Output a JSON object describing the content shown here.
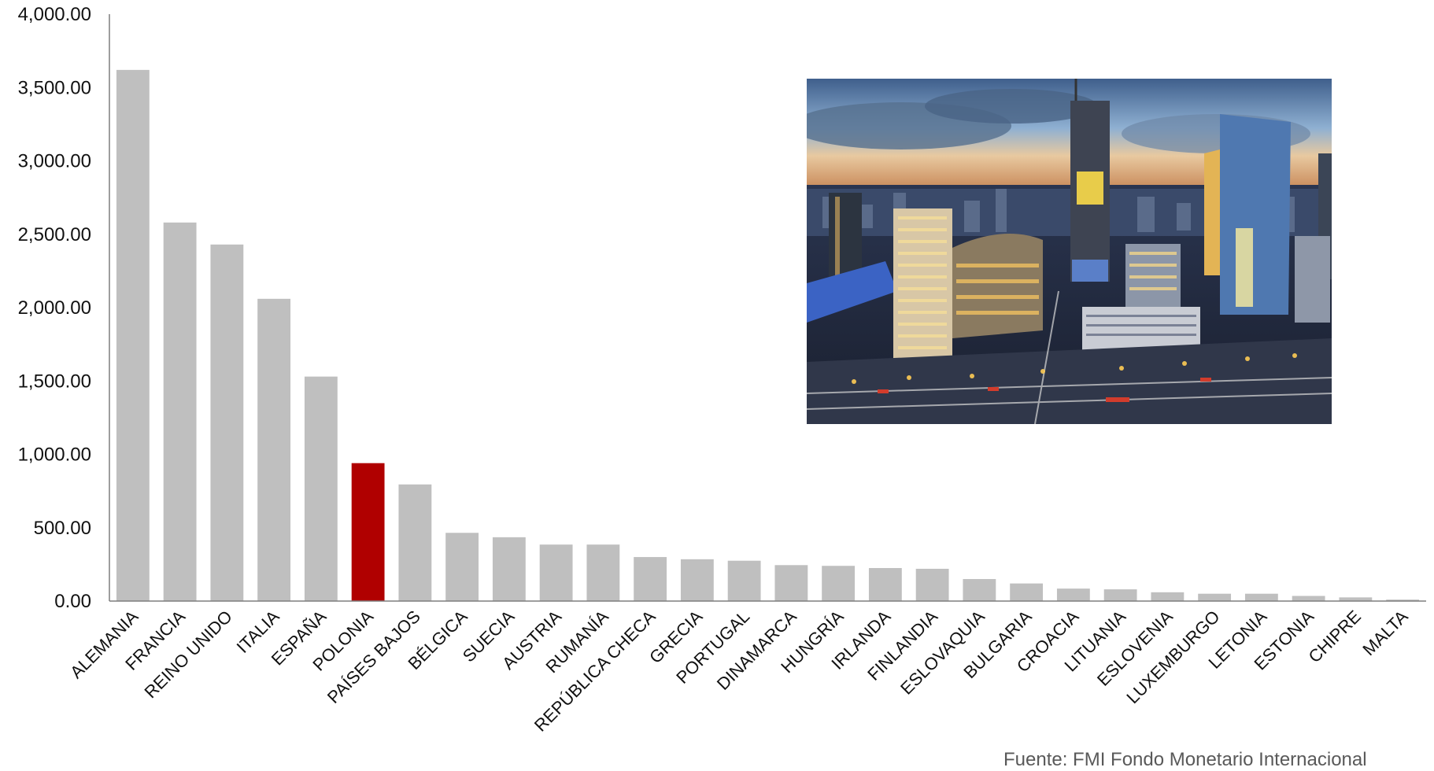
{
  "chart_data": {
    "type": "bar",
    "categories": [
      "ALEMANIA",
      "FRANCIA",
      "REINO UNIDO",
      "ITALIA",
      "ESPAÑA",
      "POLONIA",
      "PAÍSES BAJOS",
      "BÉLGICA",
      "SUECIA",
      "AUSTRIA",
      "RUMANÍA",
      "REPÚBLICA CHECA",
      "GRECIA",
      "PORTUGAL",
      "DINAMARCA",
      "HUNGRÍA",
      "IRLANDA",
      "FINLANDIA",
      "ESLOVAQUIA",
      "BULGARIA",
      "CROACIA",
      "LITUANIA",
      "ESLOVENIA",
      "LUXEMBURGO",
      "LETONIA",
      "ESTONIA",
      "CHIPRE",
      "MALTA"
    ],
    "values": [
      3620,
      2580,
      2430,
      2060,
      1530,
      940,
      795,
      465,
      435,
      385,
      385,
      300,
      285,
      275,
      245,
      240,
      225,
      220,
      150,
      120,
      85,
      80,
      60,
      50,
      50,
      35,
      25,
      10
    ],
    "ylim": [
      0,
      4000
    ],
    "yticks": [
      "0.00",
      "500.00",
      "1,000.00",
      "1,500.00",
      "2,000.00",
      "2,500.00",
      "3,000.00",
      "3,500.00",
      "4,000.00"
    ],
    "highlight_index": 5,
    "colors": {
      "bar": "#bfbfbf",
      "highlight": "#b00000",
      "axis": "#7f7f7f"
    },
    "grid": false,
    "legend": "none",
    "photo": "city-skyline-image"
  },
  "source": "Fuente: FMI Fondo Monetario Internacional"
}
